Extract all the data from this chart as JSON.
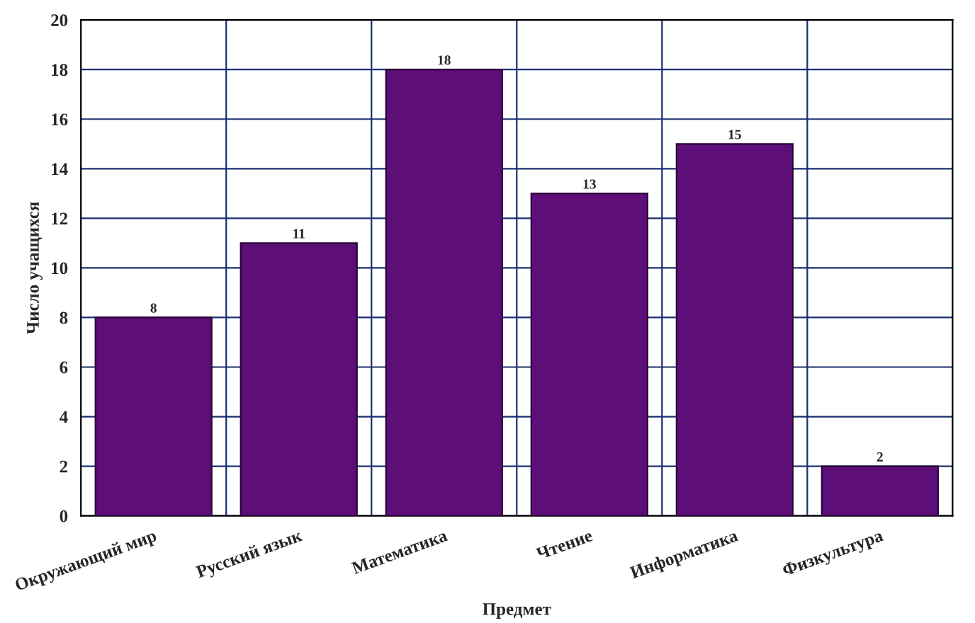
{
  "chart_data": {
    "type": "bar",
    "categories": [
      "Окружающий мир",
      "Русский язык",
      "Математика",
      "Чтение",
      "Информатика",
      "Физкультура"
    ],
    "values": [
      8,
      11,
      18,
      13,
      15,
      2
    ],
    "color": "#5e0e78",
    "xlabel": "Предмет",
    "ylabel": "Число учащихся",
    "ylim": [
      0,
      20
    ],
    "yticks": [
      0,
      2,
      4,
      6,
      8,
      10,
      12,
      14,
      16,
      18,
      20
    ],
    "grid": true,
    "data_labels": true
  }
}
